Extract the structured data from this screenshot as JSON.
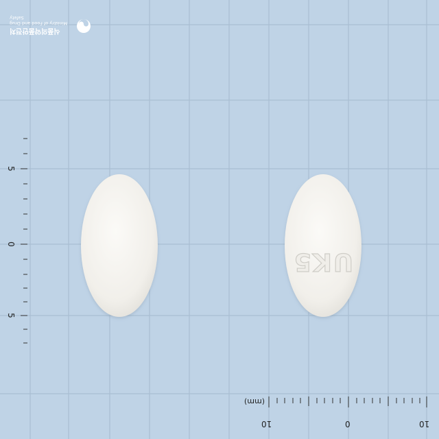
{
  "photo": {
    "background_color": "#bfd3e6",
    "grid_color": "#a9bed2",
    "tablet_color": "#f4f2ee",
    "left_tablet": {
      "face": "plain",
      "imprint": ""
    },
    "right_tablet": {
      "face": "imprinted",
      "imprint": "UK5"
    }
  },
  "watermark": {
    "korean": "식품의약품안전처",
    "english": "Ministry of Food and Drug Safety",
    "logo_icon": "mfds-taegeuk-icon"
  },
  "vertical_scale": {
    "labels": [
      "5",
      "0",
      "5"
    ]
  },
  "horizontal_scale": {
    "unit": "(mm)",
    "labels": [
      "10",
      "0",
      "10"
    ]
  }
}
